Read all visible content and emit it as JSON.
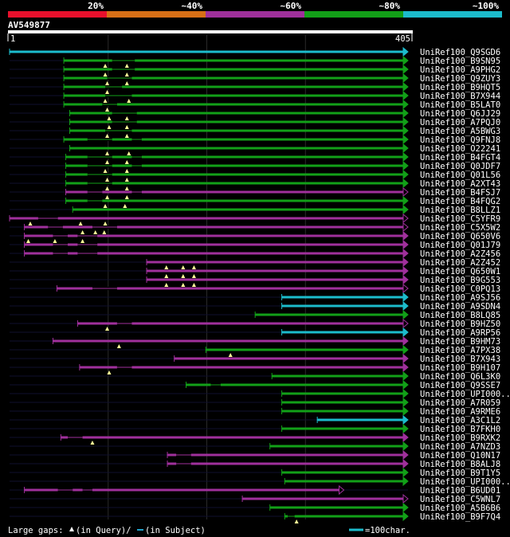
{
  "chart_data": {
    "type": "alignment-overview",
    "query": {
      "name": "AV549877",
      "start": 1,
      "end": 405
    },
    "identity_scale": [
      {
        "label": "20%",
        "color": "#e8102c"
      },
      {
        "label": "~40%",
        "color": "#d87016"
      },
      {
        "label": "~60%",
        "color": "#a0309c"
      },
      {
        "label": "~80%",
        "color": "#12a018"
      },
      {
        "label": "~100%",
        "color": "#1cbccc"
      }
    ],
    "hits": [
      {
        "name": "UniRef100_Q9SGD6",
        "color": "#1cbccc",
        "start": 1,
        "end": 405,
        "gaps": [],
        "arrow": "filled"
      },
      {
        "name": "UniRef100_B9SN95",
        "color": "#12a018",
        "start": 56,
        "end": 405,
        "gaps": [
          [
            105,
            128
          ]
        ],
        "arrow": "filled"
      },
      {
        "name": "UniRef100_A9PHG2",
        "color": "#12a018",
        "start": 56,
        "end": 405,
        "gaps": [
          [
            105,
            128
          ]
        ],
        "arrow": "filled"
      },
      {
        "name": "UniRef100_Q9ZUY3",
        "color": "#12a018",
        "start": 56,
        "end": 405,
        "gaps": [
          [
            100,
            125
          ]
        ],
        "arrow": "filled"
      },
      {
        "name": "UniRef100_B9HQT5",
        "color": "#12a018",
        "start": 56,
        "end": 405,
        "gaps": [
          [
            98,
            115
          ]
        ],
        "arrow": "filled"
      },
      {
        "name": "UniRef100_B7X944",
        "color": "#12a018",
        "start": 56,
        "end": 405,
        "gaps": [
          [
            98,
            125
          ]
        ],
        "arrow": "filled"
      },
      {
        "name": "UniRef100_B5LAT0",
        "color": "#12a018",
        "start": 56,
        "end": 405,
        "gaps": [
          [
            95,
            110
          ]
        ],
        "arrow": "filled"
      },
      {
        "name": "UniRef100_Q6JJ29",
        "color": "#12a018",
        "start": 62,
        "end": 405,
        "gaps": [
          [
            105,
            130
          ]
        ],
        "arrow": "filled"
      },
      {
        "name": "UniRef100_A7PQJ0",
        "color": "#12a018",
        "start": 62,
        "end": 405,
        "gaps": [
          [
            105,
            130
          ]
        ],
        "arrow": "filled"
      },
      {
        "name": "UniRef100_A5BWG3",
        "color": "#12a018",
        "start": 62,
        "end": 405,
        "gaps": [
          [
            98,
            125
          ]
        ],
        "arrow": "filled"
      },
      {
        "name": "UniRef100_Q9FNJ8",
        "color": "#12a018",
        "start": 56,
        "end": 405,
        "gaps": [
          [
            80,
            105
          ],
          [
            125,
            135
          ]
        ],
        "arrow": "filled"
      },
      {
        "name": "UniRef100_O22241",
        "color": "#12a018",
        "start": 62,
        "end": 405,
        "gaps": [],
        "arrow": "filled"
      },
      {
        "name": "UniRef100_B4FGT4",
        "color": "#12a018",
        "start": 58,
        "end": 405,
        "gaps": [
          [
            80,
            105
          ],
          [
            125,
            135
          ]
        ],
        "arrow": "filled"
      },
      {
        "name": "UniRef100_Q0JDF7",
        "color": "#12a018",
        "start": 58,
        "end": 405,
        "gaps": [
          [
            80,
            105
          ],
          [
            125,
            135
          ]
        ],
        "arrow": "filled"
      },
      {
        "name": "UniRef100_Q01L56",
        "color": "#12a018",
        "start": 58,
        "end": 405,
        "gaps": [
          [
            80,
            105
          ]
        ],
        "arrow": "filled"
      },
      {
        "name": "UniRef100_A2XT43",
        "color": "#12a018",
        "start": 58,
        "end": 405,
        "gaps": [
          [
            80,
            105
          ]
        ],
        "arrow": "filled"
      },
      {
        "name": "UniRef100_B4FSJ7",
        "color": "#a0309c",
        "start": 58,
        "end": 405,
        "gaps": [
          [
            80,
            95
          ],
          [
            125,
            135
          ]
        ],
        "arrow": "open"
      },
      {
        "name": "UniRef100_B4FQG2",
        "color": "#12a018",
        "start": 58,
        "end": 405,
        "gaps": [
          [
            80,
            95
          ]
        ],
        "arrow": "filled"
      },
      {
        "name": "UniRef100_B8LLZ1",
        "color": "#12a018",
        "start": 65,
        "end": 405,
        "gaps": [],
        "arrow": "filled"
      },
      {
        "name": "UniRef100_C5YFR9",
        "color": "#a0309c",
        "start": 1,
        "end": 405,
        "gaps": [
          [
            30,
            50
          ]
        ],
        "arrow": "open"
      },
      {
        "name": "UniRef100_C5X5W2",
        "color": "#a0309c",
        "start": 16,
        "end": 405,
        "gaps": [
          [
            40,
            55
          ],
          [
            85,
            110
          ]
        ],
        "arrow": "open"
      },
      {
        "name": "UniRef100_Q650V6",
        "color": "#a0309c",
        "start": 16,
        "end": 405,
        "gaps": [
          [
            45,
            60
          ],
          [
            70,
            90
          ]
        ],
        "arrow": "filled"
      },
      {
        "name": "UniRef100_Q01J79",
        "color": "#a0309c",
        "start": 16,
        "end": 405,
        "gaps": [
          [
            45,
            60
          ],
          [
            70,
            90
          ]
        ],
        "arrow": "filled"
      },
      {
        "name": "UniRef100_A2Z456",
        "color": "#a0309c",
        "start": 16,
        "end": 405,
        "gaps": [
          [
            45,
            60
          ],
          [
            70,
            90
          ]
        ],
        "arrow": "filled"
      },
      {
        "name": "UniRef100_A2Z452",
        "color": "#a0309c",
        "start": 140,
        "end": 405,
        "gaps": [],
        "arrow": "filled"
      },
      {
        "name": "UniRef100_Q650W1",
        "color": "#a0309c",
        "start": 140,
        "end": 405,
        "gaps": [],
        "arrow": "filled"
      },
      {
        "name": "UniRef100_B9G553",
        "color": "#a0309c",
        "start": 140,
        "end": 405,
        "gaps": [],
        "arrow": "filled"
      },
      {
        "name": "UniRef100_C0PQ13",
        "color": "#a0309c",
        "start": 49,
        "end": 405,
        "gaps": [
          [
            85,
            110
          ]
        ],
        "arrow": "open"
      },
      {
        "name": "UniRef100_A9SJ56",
        "color": "#1cbccc",
        "start": 277,
        "end": 405,
        "gaps": [],
        "arrow": "filled"
      },
      {
        "name": "UniRef100_A9SDN4",
        "color": "#1cbccc",
        "start": 277,
        "end": 405,
        "gaps": [],
        "arrow": "filled"
      },
      {
        "name": "UniRef100_B8LQ85",
        "color": "#12a018",
        "start": 250,
        "end": 405,
        "gaps": [],
        "arrow": "filled"
      },
      {
        "name": "UniRef100_B9HZ50",
        "color": "#a0309c",
        "start": 70,
        "end": 405,
        "gaps": [
          [
            110,
            125
          ]
        ],
        "arrow": "open"
      },
      {
        "name": "UniRef100_A9RP56",
        "color": "#1cbccc",
        "start": 277,
        "end": 405,
        "gaps": [],
        "arrow": "filled"
      },
      {
        "name": "UniRef100_B9HM73",
        "color": "#a0309c",
        "start": 45,
        "end": 405,
        "gaps": [],
        "arrow": "filled"
      },
      {
        "name": "UniRef100_A7PX38",
        "color": "#12a018",
        "start": 200,
        "end": 405,
        "gaps": [],
        "arrow": "filled"
      },
      {
        "name": "UniRef100_B7X943",
        "color": "#a0309c",
        "start": 168,
        "end": 405,
        "gaps": [],
        "arrow": "filled"
      },
      {
        "name": "UniRef100_B9H107",
        "color": "#a0309c",
        "start": 72,
        "end": 405,
        "gaps": [
          [
            110,
            125
          ]
        ],
        "arrow": "filled"
      },
      {
        "name": "UniRef100_Q6L3K0",
        "color": "#12a018",
        "start": 267,
        "end": 405,
        "gaps": [],
        "arrow": "filled"
      },
      {
        "name": "UniRef100_Q9SSE7",
        "color": "#12a018",
        "start": 180,
        "end": 405,
        "gaps": [
          [
            205,
            215
          ]
        ],
        "arrow": "filled"
      },
      {
        "name": "UniRef100_UPI000..",
        "color": "#12a018",
        "start": 277,
        "end": 405,
        "gaps": [],
        "arrow": "filled"
      },
      {
        "name": "UniRef100_A7R059",
        "color": "#12a018",
        "start": 277,
        "end": 405,
        "gaps": [],
        "arrow": "filled"
      },
      {
        "name": "UniRef100_A9RME6",
        "color": "#12a018",
        "start": 277,
        "end": 405,
        "gaps": [],
        "arrow": "filled"
      },
      {
        "name": "UniRef100_A3C1L2",
        "color": "#1cbccc",
        "start": 313,
        "end": 405,
        "gaps": [],
        "arrow": "filled"
      },
      {
        "name": "UniRef100_B7FKH0",
        "color": "#12a018",
        "start": 277,
        "end": 405,
        "gaps": [],
        "arrow": "filled"
      },
      {
        "name": "UniRef100_B9RXK2",
        "color": "#a0309c",
        "start": 53,
        "end": 405,
        "gaps": [
          [
            60,
            75
          ]
        ],
        "arrow": "filled"
      },
      {
        "name": "UniRef100_A7NZD3",
        "color": "#12a018",
        "start": 265,
        "end": 405,
        "gaps": [],
        "arrow": "filled"
      },
      {
        "name": "UniRef100_Q10N17",
        "color": "#a0309c",
        "start": 161,
        "end": 405,
        "gaps": [
          [
            170,
            185
          ]
        ],
        "arrow": "filled"
      },
      {
        "name": "UniRef100_B8ALJ8",
        "color": "#a0309c",
        "start": 161,
        "end": 405,
        "gaps": [
          [
            170,
            185
          ]
        ],
        "arrow": "filled"
      },
      {
        "name": "UniRef100_B9T1Y5",
        "color": "#12a018",
        "start": 277,
        "end": 405,
        "gaps": [],
        "arrow": "filled"
      },
      {
        "name": "UniRef100_UPI000..",
        "color": "#12a018",
        "start": 280,
        "end": 405,
        "gaps": [],
        "arrow": "filled"
      },
      {
        "name": "UniRef100_B6UD01",
        "color": "#a0309c",
        "start": 16,
        "end": 340,
        "gaps": [
          [
            50,
            65
          ],
          [
            75,
            85
          ]
        ],
        "arrow": "open"
      },
      {
        "name": "UniRef100_C5WNL7",
        "color": "#a0309c",
        "start": 237,
        "end": 405,
        "gaps": [],
        "arrow": "open"
      },
      {
        "name": "UniRef100_A5B6B6",
        "color": "#12a018",
        "start": 265,
        "end": 405,
        "gaps": [],
        "arrow": "filled"
      },
      {
        "name": "UniRef100_B9F7Q4",
        "color": "#12a018",
        "start": 280,
        "end": 405,
        "gaps": [
          [
            283,
            290
          ]
        ],
        "arrow": "filled"
      }
    ],
    "query_gaps": [
      {
        "row": 2,
        "pos": [
          98,
          120
        ]
      },
      {
        "row": 3,
        "pos": [
          98,
          120
        ]
      },
      {
        "row": 4,
        "pos": [
          100,
          120
        ]
      },
      {
        "row": 5,
        "pos": [
          100
        ]
      },
      {
        "row": 6,
        "pos": [
          98,
          122
        ]
      },
      {
        "row": 7,
        "pos": [
          100
        ]
      },
      {
        "row": 8,
        "pos": [
          102,
          120
        ]
      },
      {
        "row": 9,
        "pos": [
          102,
          120
        ]
      },
      {
        "row": 10,
        "pos": [
          100,
          120
        ]
      },
      {
        "row": 12,
        "pos": [
          100,
          122
        ]
      },
      {
        "row": 13,
        "pos": [
          100,
          120
        ]
      },
      {
        "row": 14,
        "pos": [
          98,
          120
        ]
      },
      {
        "row": 15,
        "pos": [
          100,
          120
        ]
      },
      {
        "row": 16,
        "pos": [
          100,
          120
        ]
      },
      {
        "row": 17,
        "pos": [
          100,
          120
        ]
      },
      {
        "row": 18,
        "pos": [
          98,
          118
        ]
      },
      {
        "row": 20,
        "pos": [
          22,
          73,
          98
        ]
      },
      {
        "row": 21,
        "pos": [
          75,
          88,
          97
        ]
      },
      {
        "row": 22,
        "pos": [
          20,
          47,
          75
        ]
      },
      {
        "row": 25,
        "pos": [
          160,
          177,
          188
        ]
      },
      {
        "row": 26,
        "pos": [
          160,
          177,
          188
        ]
      },
      {
        "row": 27,
        "pos": [
          160,
          177,
          188
        ]
      },
      {
        "row": 32,
        "pos": [
          100
        ]
      },
      {
        "row": 34,
        "pos": [
          112
        ]
      },
      {
        "row": 35,
        "pos": [
          225
        ]
      },
      {
        "row": 37,
        "pos": [
          102
        ]
      },
      {
        "row": 45,
        "pos": [
          85
        ]
      },
      {
        "row": 54,
        "pos": [
          292
        ]
      }
    ],
    "legend": {
      "large_gaps_label": "Large gaps:",
      "in_query_label": "(in Query)/",
      "in_subject_label": "(in Subject)",
      "scale_label": "=100char."
    }
  }
}
